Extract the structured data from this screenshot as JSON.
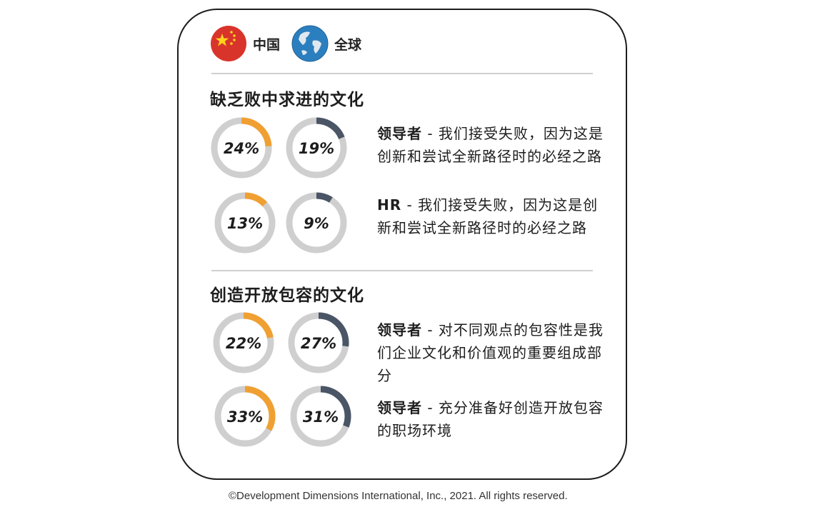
{
  "legend": [
    {
      "label": "中国",
      "icon": "china-flag-icon",
      "color": "#d9342b"
    },
    {
      "label": "全球",
      "icon": "globe-icon",
      "color": "#2c7fbf"
    }
  ],
  "colors": {
    "china": "#f0a032",
    "global": "#4a5566",
    "track": "#cfcfcf"
  },
  "sections": [
    {
      "title": "缺乏败中求进的文化",
      "rows": [
        {
          "china": "24%",
          "global": "19%",
          "role": "领导者",
          "text": " - 我们接受失败，因为这是创新和尝试全新路径时的必经之路"
        },
        {
          "china": "13%",
          "global": "9%",
          "role": "HR",
          "text": " - 我们接受失败，因为这是创新和尝试全新路径时的必经之路"
        }
      ]
    },
    {
      "title": "创造开放包容的文化",
      "rows": [
        {
          "china": "22%",
          "global": "27%",
          "role": "领导者",
          "text": " - 对不同观点的包容性是我们企业文化和价值观的重要组成部分"
        },
        {
          "china": "33%",
          "global": "31%",
          "role": "领导者",
          "text": " - 充分准备好创造开放包容的职场环境"
        }
      ]
    }
  ],
  "chart_data": {
    "type": "donut",
    "series": [
      {
        "name": "中国"
      },
      {
        "name": "全球"
      }
    ],
    "groups": [
      {
        "title": "缺乏败中求进的文化",
        "items": [
          {
            "label": "领导者 - 我们接受失败，因为这是创新和尝试全新路径时的必经之路",
            "china": 24,
            "global": 19
          },
          {
            "label": "HR - 我们接受失败，因为这是创新和尝试全新路径时的必经之路",
            "china": 13,
            "global": 9
          }
        ]
      },
      {
        "title": "创造开放包容的文化",
        "items": [
          {
            "label": "领导者 - 对不同观点的包容性是我们企业文化和价值观的重要组成部分",
            "china": 22,
            "global": 27
          },
          {
            "label": "领导者 - 充分准备好创造开放包容的职场环境",
            "china": 33,
            "global": 31
          }
        ]
      }
    ]
  },
  "footer": "©Development Dimensions International, Inc., 2021. All rights reserved."
}
